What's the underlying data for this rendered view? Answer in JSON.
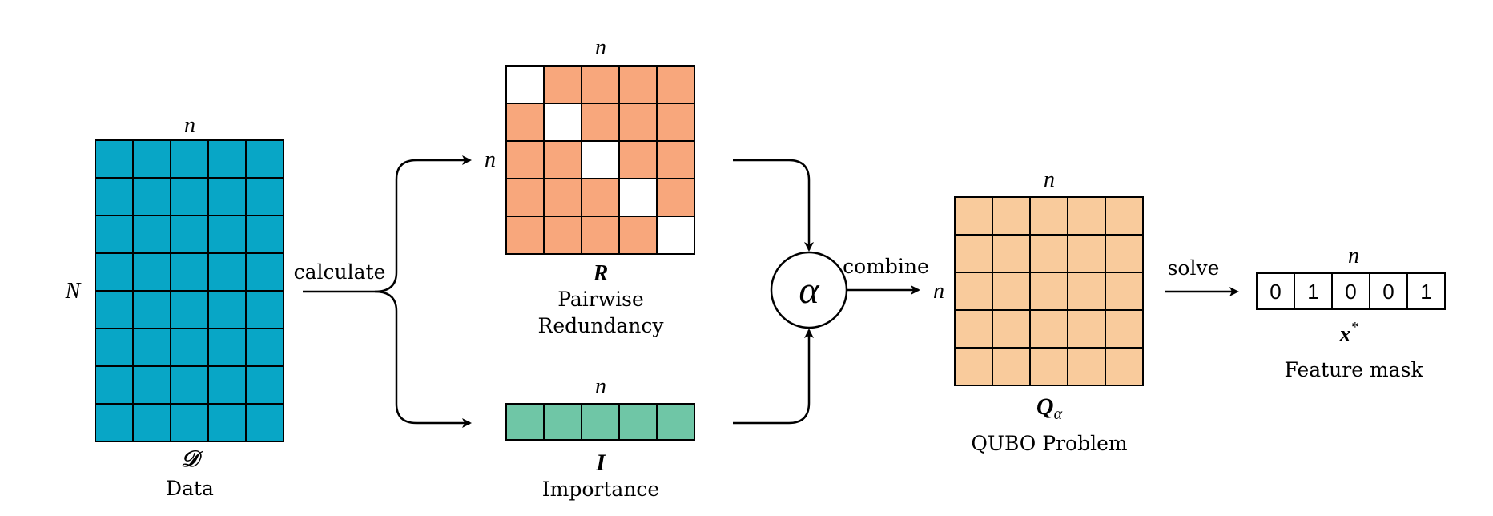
{
  "colors": {
    "data_cells": "#08a6c6",
    "redundancy_cells": "#f8a77c",
    "redundancy_diagonal": "#ffffff",
    "importance_cells": "#6fc6a6",
    "qubo_cells": "#f9cb9c",
    "mask_cells": "#ffffff",
    "stroke": "#000000"
  },
  "data_block": {
    "rows": 8,
    "cols": 5,
    "dim_top": "n",
    "dim_left": "N",
    "symbol": "𝒟",
    "caption": "Data"
  },
  "calculate_label": "calculate",
  "redundancy_block": {
    "rows": 5,
    "cols": 5,
    "dim_top": "n",
    "dim_left": "n",
    "symbol": "R",
    "caption_line1": "Pairwise",
    "caption_line2": "Redundancy"
  },
  "importance_block": {
    "cols": 5,
    "dim_top": "n",
    "symbol": "I",
    "caption": "Importance"
  },
  "alpha_node": {
    "symbol": "α"
  },
  "combine_label": "combine",
  "qubo_block": {
    "rows": 5,
    "cols": 5,
    "dim_top": "n",
    "dim_left": "n",
    "symbol": "Q",
    "subscript": "α",
    "caption": "QUBO Problem"
  },
  "solve_label": "solve",
  "mask_block": {
    "dim_top": "n",
    "values": [
      "0",
      "1",
      "0",
      "0",
      "1"
    ],
    "symbol": "x",
    "superscript": "*",
    "caption": "Feature mask"
  }
}
